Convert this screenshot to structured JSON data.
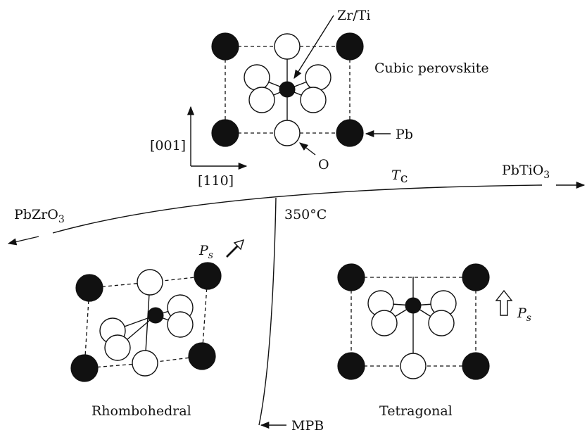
{
  "labels": {
    "zr_ti": "Zr/Ti",
    "cubic": "Cubic perovskite",
    "pb": "Pb",
    "o": "O",
    "dir_001": "[001]",
    "dir_110": "[110]",
    "tc_main": "T",
    "tc_sub": "c",
    "pbtio3_main": "PbTiO",
    "pbtio3_sub": "3",
    "pbzro3_main": "PbZrO",
    "pbzro3_sub": "3",
    "temp": "350°C",
    "ps_main": "P",
    "ps_sub": "s",
    "rhombohedral": "Rhombohedral",
    "tetragonal": "Tetragonal",
    "mpb": "MPB"
  },
  "colors": {
    "ink": "#111111",
    "background": "#ffffff"
  }
}
